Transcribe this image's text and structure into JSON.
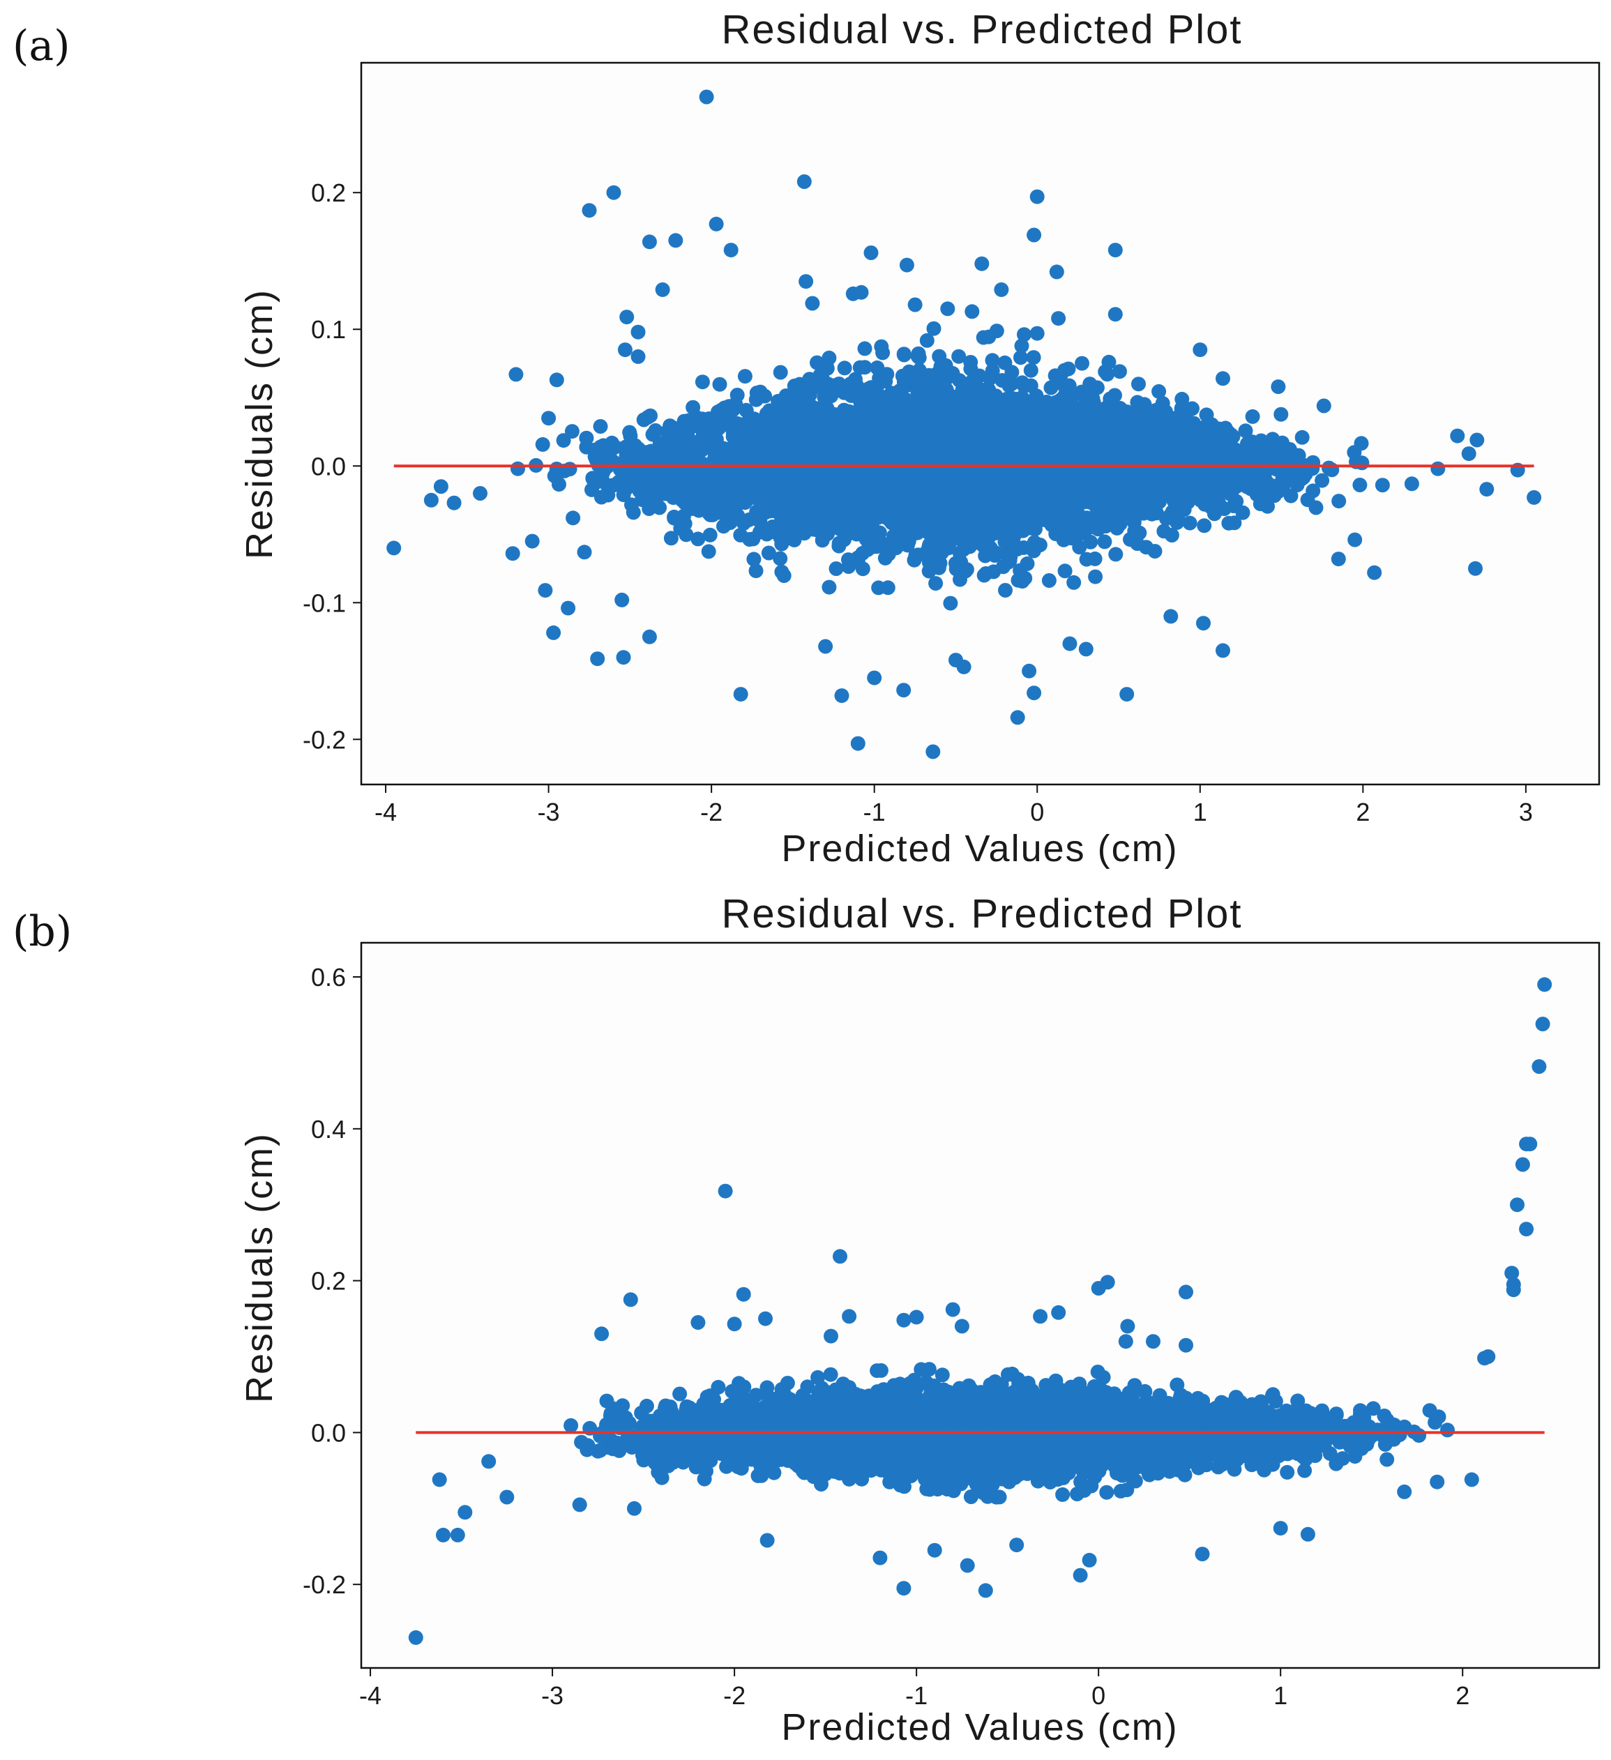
{
  "figure": {
    "panels": [
      {
        "label": "(a)"
      },
      {
        "label": "(b)"
      }
    ]
  },
  "chart_data": [
    {
      "type": "scatter",
      "panel": "(a)",
      "title": "Residual vs. Predicted Plot",
      "xlabel": "Predicted Values (cm)",
      "ylabel": "Residuals (cm)",
      "xlim": [
        -4.15,
        3.45
      ],
      "ylim": [
        -0.233,
        0.295
      ],
      "xticks": [
        -4,
        -3,
        -2,
        -1,
        0,
        1,
        2,
        3
      ],
      "xtick_labels": [
        "-4",
        "-3",
        "-2",
        "-1",
        "0",
        "1",
        "2",
        "3"
      ],
      "yticks": [
        -0.2,
        -0.1,
        0.0,
        0.1,
        0.2
      ],
      "ytick_labels": [
        "-0.2",
        "-0.1",
        "0.0",
        "0.1",
        "0.2"
      ],
      "reference_line": {
        "y": 0,
        "x_range": [
          -3.95,
          3.05
        ],
        "color": "#e8322a"
      },
      "marker_color": "#1f77c4",
      "grid": false,
      "outliers": [
        {
          "x": -2.03,
          "y": 0.27
        },
        {
          "x": -1.43,
          "y": 0.208
        },
        {
          "x": -2.6,
          "y": 0.2
        },
        {
          "x": 0.0,
          "y": 0.197
        },
        {
          "x": -2.75,
          "y": 0.187
        },
        {
          "x": -1.97,
          "y": 0.177
        },
        {
          "x": -0.02,
          "y": 0.169
        },
        {
          "x": -2.22,
          "y": 0.165
        },
        {
          "x": -2.38,
          "y": 0.164
        },
        {
          "x": -1.88,
          "y": 0.158
        },
        {
          "x": 0.48,
          "y": 0.158
        },
        {
          "x": -1.02,
          "y": 0.156
        },
        {
          "x": -0.8,
          "y": 0.147
        },
        {
          "x": -0.34,
          "y": 0.148
        },
        {
          "x": 0.12,
          "y": 0.142
        },
        {
          "x": -1.42,
          "y": 0.135
        },
        {
          "x": -2.3,
          "y": 0.129
        },
        {
          "x": -0.22,
          "y": 0.129
        },
        {
          "x": -1.13,
          "y": 0.126
        },
        {
          "x": -1.08,
          "y": 0.127
        },
        {
          "x": -1.38,
          "y": 0.119
        },
        {
          "x": -0.75,
          "y": 0.118
        },
        {
          "x": -0.55,
          "y": 0.115
        },
        {
          "x": -0.4,
          "y": 0.113
        },
        {
          "x": 0.48,
          "y": 0.111
        },
        {
          "x": 0.13,
          "y": 0.108
        },
        {
          "x": -2.52,
          "y": 0.109
        },
        {
          "x": -2.45,
          "y": 0.098
        },
        {
          "x": 0.0,
          "y": 0.097
        },
        {
          "x": -0.33,
          "y": 0.094
        },
        {
          "x": -2.53,
          "y": 0.085
        },
        {
          "x": -2.45,
          "y": 0.08
        },
        {
          "x": 1.0,
          "y": 0.085
        },
        {
          "x": 0.44,
          "y": 0.076
        },
        {
          "x": -3.2,
          "y": 0.067
        },
        {
          "x": -2.95,
          "y": 0.063
        },
        {
          "x": 1.14,
          "y": 0.064
        },
        {
          "x": 1.48,
          "y": 0.058
        },
        {
          "x": 1.76,
          "y": 0.044
        },
        {
          "x": -3.0,
          "y": 0.035
        },
        {
          "x": 2.58,
          "y": 0.022
        },
        {
          "x": 2.7,
          "y": 0.019
        },
        {
          "x": 2.65,
          "y": 0.009
        },
        {
          "x": 2.46,
          "y": -0.002
        },
        {
          "x": 2.95,
          "y": -0.003
        },
        {
          "x": 3.05,
          "y": -0.023
        },
        {
          "x": 2.76,
          "y": -0.017
        },
        {
          "x": 2.3,
          "y": -0.013
        },
        {
          "x": 2.12,
          "y": -0.014
        },
        {
          "x": -3.95,
          "y": -0.06
        },
        {
          "x": -3.72,
          "y": -0.025
        },
        {
          "x": -3.66,
          "y": -0.015
        },
        {
          "x": -3.58,
          "y": -0.027
        },
        {
          "x": -3.42,
          "y": -0.02
        },
        {
          "x": -3.22,
          "y": -0.064
        },
        {
          "x": -3.1,
          "y": -0.055
        },
        {
          "x": -3.02,
          "y": -0.091
        },
        {
          "x": -2.97,
          "y": -0.122
        },
        {
          "x": -2.88,
          "y": -0.104
        },
        {
          "x": -2.7,
          "y": -0.141
        },
        {
          "x": -2.54,
          "y": -0.14
        },
        {
          "x": -2.38,
          "y": -0.125
        },
        {
          "x": -2.55,
          "y": -0.098
        },
        {
          "x": -1.82,
          "y": -0.167
        },
        {
          "x": -1.2,
          "y": -0.168
        },
        {
          "x": -1.1,
          "y": -0.203
        },
        {
          "x": -0.64,
          "y": -0.209
        },
        {
          "x": -0.12,
          "y": -0.184
        },
        {
          "x": -0.02,
          "y": -0.166
        },
        {
          "x": 0.55,
          "y": -0.167
        },
        {
          "x": 0.2,
          "y": -0.13
        },
        {
          "x": 0.3,
          "y": -0.134
        },
        {
          "x": -0.82,
          "y": -0.164
        },
        {
          "x": -1.0,
          "y": -0.155
        },
        {
          "x": -0.45,
          "y": -0.147
        },
        {
          "x": -0.5,
          "y": -0.142
        },
        {
          "x": -1.3,
          "y": -0.132
        },
        {
          "x": 1.02,
          "y": -0.115
        },
        {
          "x": 1.14,
          "y": -0.135
        },
        {
          "x": 2.69,
          "y": -0.075
        },
        {
          "x": 2.07,
          "y": -0.078
        },
        {
          "x": 1.95,
          "y": -0.054
        },
        {
          "x": 1.85,
          "y": -0.068
        },
        {
          "x": -2.78,
          "y": -0.063
        },
        {
          "x": -2.85,
          "y": -0.038
        },
        {
          "x": 0.82,
          "y": -0.11
        },
        {
          "x": -0.05,
          "y": -0.15
        }
      ],
      "bulk_cloud": {
        "note": "Dense cluster of several thousand points centred on y = 0; half-spread (in cm) grows from about 0.015 at x = -3.3 to about 0.055 near x = -0.5, then narrows to about 0.02 at x = 2.2",
        "x_range": [
          -3.3,
          2.25
        ],
        "spread_profile": [
          {
            "x": -3.3,
            "s": 0.013
          },
          {
            "x": -3.0,
            "s": 0.016
          },
          {
            "x": -2.5,
            "s": 0.026
          },
          {
            "x": -2.0,
            "s": 0.036
          },
          {
            "x": -1.5,
            "s": 0.044
          },
          {
            "x": -1.0,
            "s": 0.05
          },
          {
            "x": -0.5,
            "s": 0.054
          },
          {
            "x": 0.0,
            "s": 0.05
          },
          {
            "x": 0.5,
            "s": 0.04
          },
          {
            "x": 1.0,
            "s": 0.031
          },
          {
            "x": 1.5,
            "s": 0.024
          },
          {
            "x": 2.0,
            "s": 0.02
          },
          {
            "x": 2.25,
            "s": 0.016
          }
        ],
        "n_points": 4500
      }
    },
    {
      "type": "scatter",
      "panel": "(b)",
      "title": "Residual vs. Predicted Plot",
      "xlabel": "Predicted Values (cm)",
      "ylabel": "Residuals (cm)",
      "xlim": [
        -4.05,
        2.75
      ],
      "ylim": [
        -0.31,
        0.645
      ],
      "xticks": [
        -4,
        -3,
        -2,
        -1,
        0,
        1,
        2
      ],
      "xtick_labels": [
        "-4",
        "-3",
        "-2",
        "-1",
        "0",
        "1",
        "2"
      ],
      "yticks": [
        -0.2,
        0.0,
        0.2,
        0.4,
        0.6
      ],
      "ytick_labels": [
        "-0.2",
        "0.0",
        "0.2",
        "0.4",
        "0.6"
      ],
      "reference_line": {
        "y": 0,
        "x_range": [
          -3.75,
          2.45
        ],
        "color": "#e8322a"
      },
      "marker_color": "#1f77c4",
      "grid": false,
      "outliers": [
        {
          "x": 2.45,
          "y": 0.59
        },
        {
          "x": 2.44,
          "y": 0.538
        },
        {
          "x": 2.42,
          "y": 0.482
        },
        {
          "x": 2.37,
          "y": 0.38
        },
        {
          "x": 2.35,
          "y": 0.38
        },
        {
          "x": 2.33,
          "y": 0.353
        },
        {
          "x": 2.3,
          "y": 0.3
        },
        {
          "x": 2.35,
          "y": 0.268
        },
        {
          "x": 2.27,
          "y": 0.21
        },
        {
          "x": 2.28,
          "y": 0.195
        },
        {
          "x": 2.28,
          "y": 0.188
        },
        {
          "x": 2.14,
          "y": 0.1
        },
        {
          "x": 2.12,
          "y": 0.098
        },
        {
          "x": -2.05,
          "y": 0.318
        },
        {
          "x": -1.42,
          "y": 0.232
        },
        {
          "x": 0.05,
          "y": 0.198
        },
        {
          "x": 0.0,
          "y": 0.19
        },
        {
          "x": 0.48,
          "y": 0.185
        },
        {
          "x": -1.95,
          "y": 0.182
        },
        {
          "x": -2.57,
          "y": 0.175
        },
        {
          "x": -0.8,
          "y": 0.162
        },
        {
          "x": -0.22,
          "y": 0.158
        },
        {
          "x": -0.32,
          "y": 0.153
        },
        {
          "x": -1.37,
          "y": 0.153
        },
        {
          "x": -1.0,
          "y": 0.152
        },
        {
          "x": -1.07,
          "y": 0.148
        },
        {
          "x": -1.83,
          "y": 0.15
        },
        {
          "x": -2.2,
          "y": 0.145
        },
        {
          "x": -2.0,
          "y": 0.143
        },
        {
          "x": -0.75,
          "y": 0.14
        },
        {
          "x": 0.16,
          "y": 0.14
        },
        {
          "x": -2.73,
          "y": 0.13
        },
        {
          "x": 0.3,
          "y": 0.12
        },
        {
          "x": -1.47,
          "y": 0.127
        },
        {
          "x": 0.15,
          "y": 0.12
        },
        {
          "x": 0.48,
          "y": 0.115
        },
        {
          "x": -3.75,
          "y": -0.27
        },
        {
          "x": -3.6,
          "y": -0.135
        },
        {
          "x": -3.52,
          "y": -0.135
        },
        {
          "x": -3.48,
          "y": -0.105
        },
        {
          "x": -3.62,
          "y": -0.062
        },
        {
          "x": -3.35,
          "y": -0.038
        },
        {
          "x": -3.25,
          "y": -0.085
        },
        {
          "x": -1.82,
          "y": -0.142
        },
        {
          "x": -1.2,
          "y": -0.165
        },
        {
          "x": -1.07,
          "y": -0.205
        },
        {
          "x": -0.62,
          "y": -0.208
        },
        {
          "x": -0.1,
          "y": -0.188
        },
        {
          "x": -0.05,
          "y": -0.168
        },
        {
          "x": 0.57,
          "y": -0.16
        },
        {
          "x": -0.72,
          "y": -0.175
        },
        {
          "x": -0.9,
          "y": -0.155
        },
        {
          "x": -0.45,
          "y": -0.148
        },
        {
          "x": 1.15,
          "y": -0.134
        },
        {
          "x": 1.0,
          "y": -0.126
        },
        {
          "x": 2.05,
          "y": -0.062
        },
        {
          "x": 1.86,
          "y": -0.065
        },
        {
          "x": 1.68,
          "y": -0.078
        },
        {
          "x": -2.55,
          "y": -0.1
        },
        {
          "x": -2.85,
          "y": -0.095
        }
      ],
      "bulk_cloud": {
        "note": "Dense cluster of several thousand points centred on y = 0; half-spread (in cm) about 0.03 at x = -3.0, roughly 0.04-0.05 across the middle, narrowing to about 0.025 near x = 1.9",
        "x_range": [
          -3.1,
          2.0
        ],
        "spread_profile": [
          {
            "x": -3.1,
            "s": 0.022
          },
          {
            "x": -2.8,
            "s": 0.03
          },
          {
            "x": -2.3,
            "s": 0.036
          },
          {
            "x": -1.8,
            "s": 0.04
          },
          {
            "x": -1.2,
            "s": 0.043
          },
          {
            "x": -0.6,
            "s": 0.045
          },
          {
            "x": 0.0,
            "s": 0.042
          },
          {
            "x": 0.6,
            "s": 0.035
          },
          {
            "x": 1.2,
            "s": 0.028
          },
          {
            "x": 1.7,
            "s": 0.025
          },
          {
            "x": 2.0,
            "s": 0.022
          }
        ],
        "n_points": 4500
      }
    }
  ]
}
